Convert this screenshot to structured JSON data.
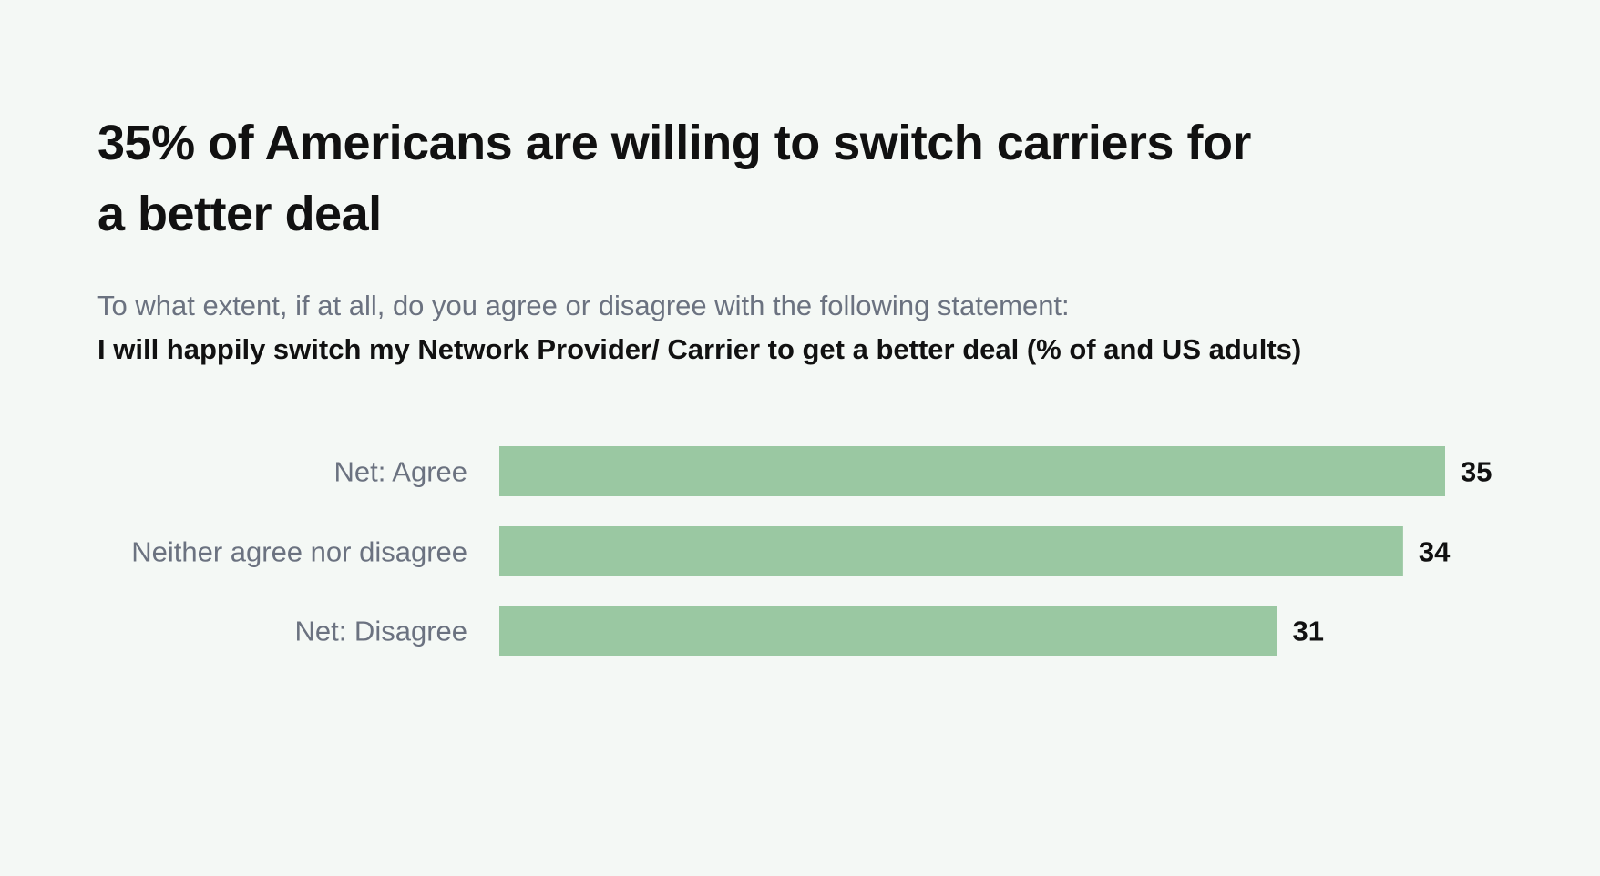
{
  "colors": {
    "background": "#f4f8f5",
    "bar": "#9ac8a2"
  },
  "chart_data": {
    "type": "bar",
    "orientation": "horizontal",
    "title": "35% of Americans are willing to switch carriers for a better deal",
    "subtitle": "To what extent, if at all, do you agree or disagree with the following statement:",
    "question": "I will happily switch my Network Provider/ Carrier to get a better deal (% of and US adults)",
    "categories": [
      "Net: Agree",
      "Neither agree nor disagree",
      "Net: Disagree"
    ],
    "values": [
      35,
      34,
      31
    ],
    "data_labels": [
      "35",
      "34",
      "31"
    ],
    "grid": false,
    "legend": "none"
  }
}
